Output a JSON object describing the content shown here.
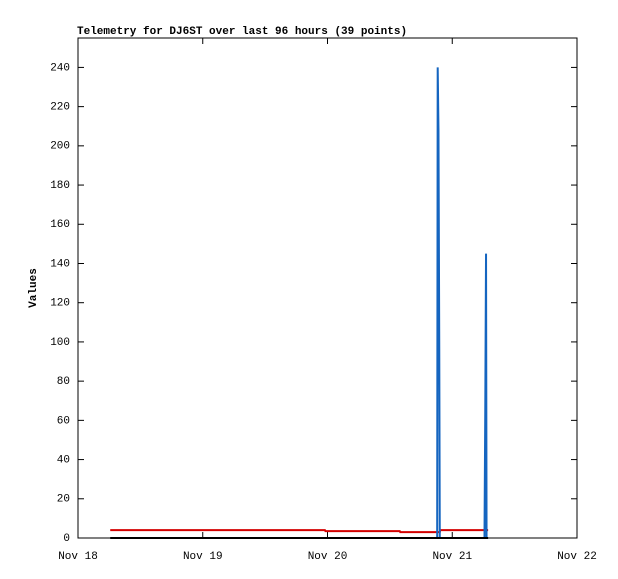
{
  "chart_data": {
    "type": "line",
    "title": "Telemetry for DJ6ST over last 96 hours (39 points)",
    "y_label": "Values",
    "xlim": [
      0,
      96
    ],
    "xticks": [
      {
        "value": 0,
        "label": "Nov 18"
      },
      {
        "value": 24,
        "label": "Nov 19"
      },
      {
        "value": 48,
        "label": "Nov 20"
      },
      {
        "value": 72,
        "label": "Nov 21"
      },
      {
        "value": 96,
        "label": "Nov 22"
      }
    ],
    "ylim": [
      0,
      255
    ],
    "yticks": [
      0,
      20,
      40,
      60,
      80,
      100,
      120,
      140,
      160,
      180,
      200,
      220,
      240
    ],
    "grid": false,
    "series": [
      {
        "color": "#d40000",
        "x": [
          6.2,
          47.5,
          47.6,
          61.9,
          62,
          69.6,
          69.7,
          78.9
        ],
        "values": [
          4,
          4,
          3.5,
          3.5,
          3,
          3,
          4,
          4
        ]
      },
      {
        "color": "#1565c0",
        "x": [
          69.1,
          69.2,
          69.35,
          69.5,
          69.6,
          74,
          78.2,
          78.35,
          78.5,
          78.6
        ],
        "values": [
          0,
          240,
          208,
          97,
          0,
          null,
          0,
          64,
          145,
          0
        ]
      },
      {
        "color": "#000000",
        "x": [
          6.2,
          78.9
        ],
        "values": [
          0,
          0
        ]
      }
    ]
  }
}
